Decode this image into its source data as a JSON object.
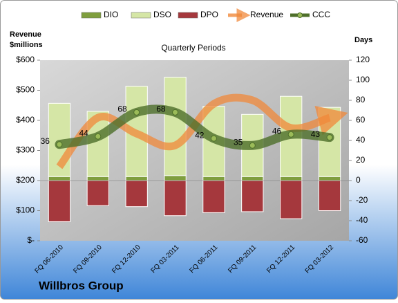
{
  "chart_data": {
    "type": "combo",
    "title": "Quarterly Periods",
    "company": "Willbros Group",
    "ylabel": [
      "Revenue",
      "$millions"
    ],
    "y2label": "Days",
    "categories": [
      "FQ 06-2010",
      "FQ 09-2010",
      "FQ 12-2010",
      "FQ 03-2011",
      "FQ 06-2011",
      "FQ 09-2011",
      "FQ 12-2011",
      "FQ 03-2012"
    ],
    "ylim": [
      0,
      600
    ],
    "yticks": [
      {
        "value": 0,
        "label": "$-"
      },
      {
        "value": 100,
        "label": "$100"
      },
      {
        "value": 200,
        "label": "$200"
      },
      {
        "value": 300,
        "label": "$300"
      },
      {
        "value": 400,
        "label": "$400"
      },
      {
        "value": 500,
        "label": "$500"
      },
      {
        "value": 600,
        "label": "$600"
      }
    ],
    "y2lim": [
      -60,
      120
    ],
    "y2ticks": [
      -60,
      -40,
      -20,
      0,
      20,
      40,
      60,
      80,
      100,
      120
    ],
    "series": [
      {
        "name": "DIO",
        "type": "bar",
        "axis": "y2",
        "color": "#7f9e3e",
        "values": [
          4,
          4,
          4,
          5,
          4,
          4,
          4,
          4
        ]
      },
      {
        "name": "DSO",
        "type": "bar",
        "axis": "y2",
        "color": "#d5e6a6",
        "values": [
          73,
          65,
          90,
          98,
          70,
          62,
          80,
          69
        ]
      },
      {
        "name": "DPO",
        "type": "bar",
        "axis": "y2",
        "color": "#a5383d",
        "values": [
          -41,
          -25,
          -26,
          -35,
          -32,
          -31,
          -38,
          -30
        ]
      },
      {
        "name": "Revenue",
        "type": "arrow",
        "axis": "y",
        "color": "#f0883a",
        "values": [
          246,
          409,
          356,
          317,
          455,
          467,
          375,
          409
        ]
      },
      {
        "name": "CCC",
        "type": "line",
        "axis": "y2",
        "color": "#4e6f2a",
        "values": [
          36,
          44,
          68,
          68,
          42,
          35,
          46,
          43
        ]
      }
    ]
  }
}
